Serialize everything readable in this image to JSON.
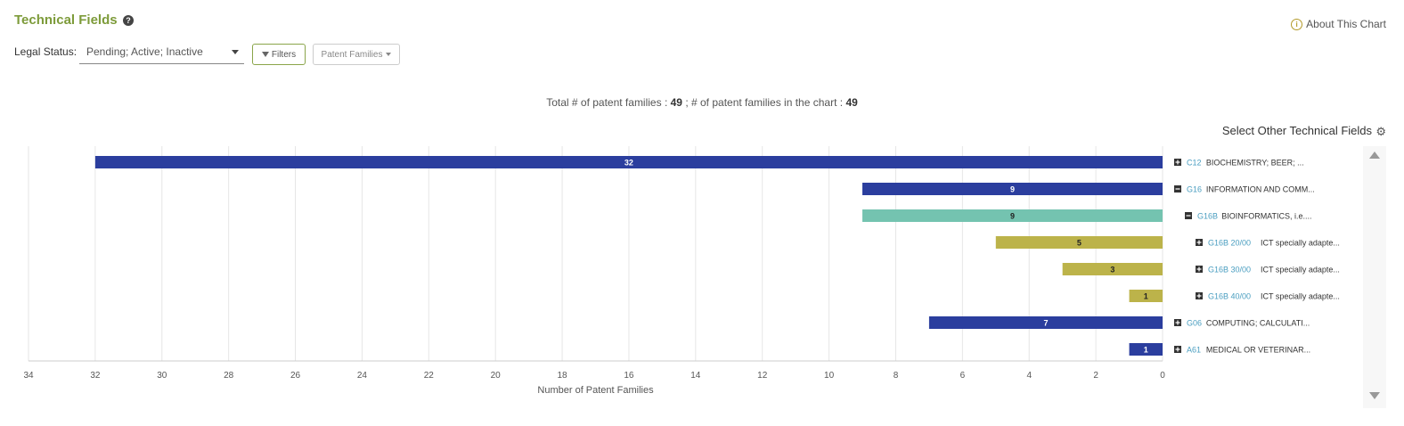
{
  "header": {
    "title": "Technical Fields",
    "help_icon": "question-circle-icon",
    "about_label": "About This Chart"
  },
  "toolbar": {
    "legal_status_label": "Legal Status:",
    "legal_status_value": "Pending; Active; Inactive",
    "filters_label": "Filters",
    "families_label": "Patent Families"
  },
  "summary": {
    "total_label": "Total # of patent families :",
    "total_value": "49",
    "in_chart_label": "; # of patent families in the chart :",
    "in_chart_value": "49"
  },
  "select_other_label": "Select Other Technical Fields",
  "colors": {
    "level1": "#2b3e9e",
    "level2": "#74c3b0",
    "level3": "#bcb34a",
    "code_link": "#4a9ec0"
  },
  "chart_data": {
    "type": "bar",
    "orientation": "horizontal",
    "x_direction": "reversed",
    "xlabel": "Number of Patent Families",
    "xlim": [
      0,
      34
    ],
    "xticks": [
      34,
      32,
      30,
      28,
      26,
      24,
      22,
      20,
      18,
      16,
      14,
      12,
      10,
      8,
      6,
      4,
      2,
      0
    ],
    "grid": true,
    "rows": [
      {
        "code": "C12",
        "label": "BIOCHEMISTRY; BEER; ...",
        "value": 32,
        "level": 1,
        "toggle": "plus"
      },
      {
        "code": "G16",
        "label": "INFORMATION AND COMM...",
        "value": 9,
        "level": 1,
        "toggle": "minus"
      },
      {
        "code": "G16B",
        "label": "BIOINFORMATICS, i.e....",
        "value": 9,
        "level": 2,
        "toggle": "minus"
      },
      {
        "code": "G16B 20/00",
        "label": "ICT specially adapte...",
        "value": 5,
        "level": 3,
        "toggle": "plus"
      },
      {
        "code": "G16B 30/00",
        "label": "ICT specially adapte...",
        "value": 3,
        "level": 3,
        "toggle": "plus"
      },
      {
        "code": "G16B 40/00",
        "label": "ICT specially adapte...",
        "value": 1,
        "level": 3,
        "toggle": "plus"
      },
      {
        "code": "G06",
        "label": "COMPUTING; CALCULATI...",
        "value": 7,
        "level": 1,
        "toggle": "plus"
      },
      {
        "code": "A61",
        "label": "MEDICAL OR VETERINAR...",
        "value": 1,
        "level": 1,
        "toggle": "plus"
      }
    ]
  }
}
